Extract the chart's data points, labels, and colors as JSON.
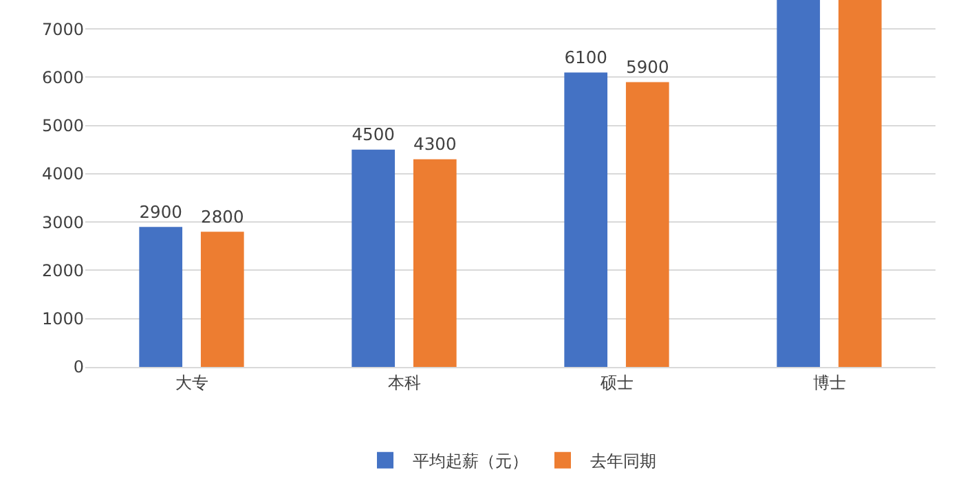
{
  "chart_data": {
    "type": "bar",
    "categories": [
      "大专",
      "本科",
      "硕士",
      "博士"
    ],
    "series": [
      {
        "name": "平均起薪（元）",
        "color": "#4472c4",
        "values": [
          2900,
          4500,
          6100,
          7600
        ],
        "value_labels": [
          "2900",
          "4500",
          "6100",
          null
        ]
      },
      {
        "name": "去年同期",
        "color": "#ed7d31",
        "values": [
          2800,
          4300,
          5900,
          7600
        ],
        "value_labels": [
          "2800",
          "4300",
          "5900",
          null
        ]
      }
    ],
    "ylim": [
      0,
      7600
    ],
    "yticks": [
      0,
      1000,
      2000,
      3000,
      4000,
      5000,
      6000,
      7000
    ],
    "grid": "y",
    "legend": "bottom"
  }
}
